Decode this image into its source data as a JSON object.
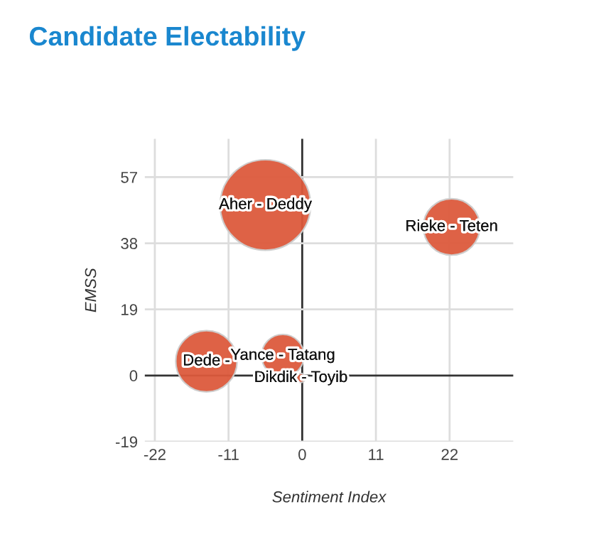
{
  "chart_data": {
    "type": "bubble",
    "title": "Candidate Electability",
    "xlabel": "Sentiment Index",
    "ylabel": "EMSS",
    "x": [
      -5.5,
      22.3,
      -14.3,
      -2.9,
      -0.2
    ],
    "series": [
      {
        "color": "#dc5a3c",
        "values": [
          49,
          42.7,
          4.1,
          5.7,
          -0.7
        ],
        "sizes": [
          1,
          0.39,
          0.46,
          0.22,
          0.01
        ]
      }
    ],
    "annotations": [
      {
        "text": "Aher - Deddy",
        "x": -5.5,
        "y": 49
      },
      {
        "text": "Rieke - Teten",
        "x": 22.3,
        "y": 42.7
      },
      {
        "text": "Dede -",
        "x": -14.3,
        "y": 4.1
      },
      {
        "text": "Yance - Tatang",
        "x": -2.9,
        "y": 5.7
      },
      {
        "text": "Dikdik - Toyib",
        "x": -0.2,
        "y": -0.7
      }
    ],
    "xlim": [
      -23.5,
      31.5
    ],
    "xticks": [
      -22,
      -11,
      0,
      11,
      22
    ],
    "ylim": [
      -19,
      68
    ],
    "yticks": [
      -19,
      0,
      19,
      38,
      57
    ],
    "grid": true,
    "legend": false
  }
}
